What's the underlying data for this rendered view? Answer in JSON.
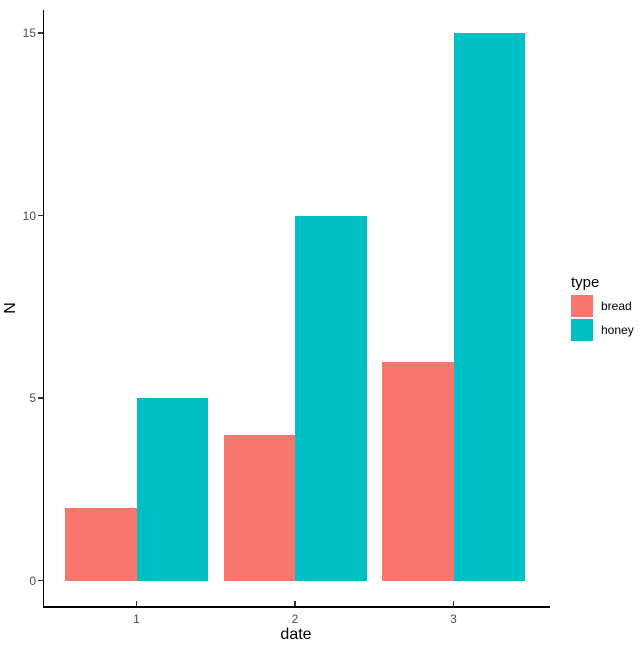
{
  "chart_data": {
    "type": "bar",
    "mode": "grouped-dodge",
    "title": "",
    "xlabel": "date",
    "ylabel": "N",
    "legend_title": "type",
    "legend_position": "right",
    "grid": false,
    "background": "#ffffff",
    "categories": [
      "1",
      "2",
      "3"
    ],
    "series": [
      {
        "name": "bread",
        "color": "#F8766D",
        "values": [
          2,
          4,
          6
        ]
      },
      {
        "name": "honey",
        "color": "#00BFC4",
        "values": [
          5,
          10,
          15
        ]
      }
    ],
    "y_ticks": [
      0,
      5,
      10,
      15
    ],
    "ylim": [
      0,
      15.75
    ],
    "colors": {
      "axis_line": "#000000",
      "tick_mark": "#333333",
      "tick_label": "#4d4d4d",
      "axis_title": "#000000"
    }
  }
}
